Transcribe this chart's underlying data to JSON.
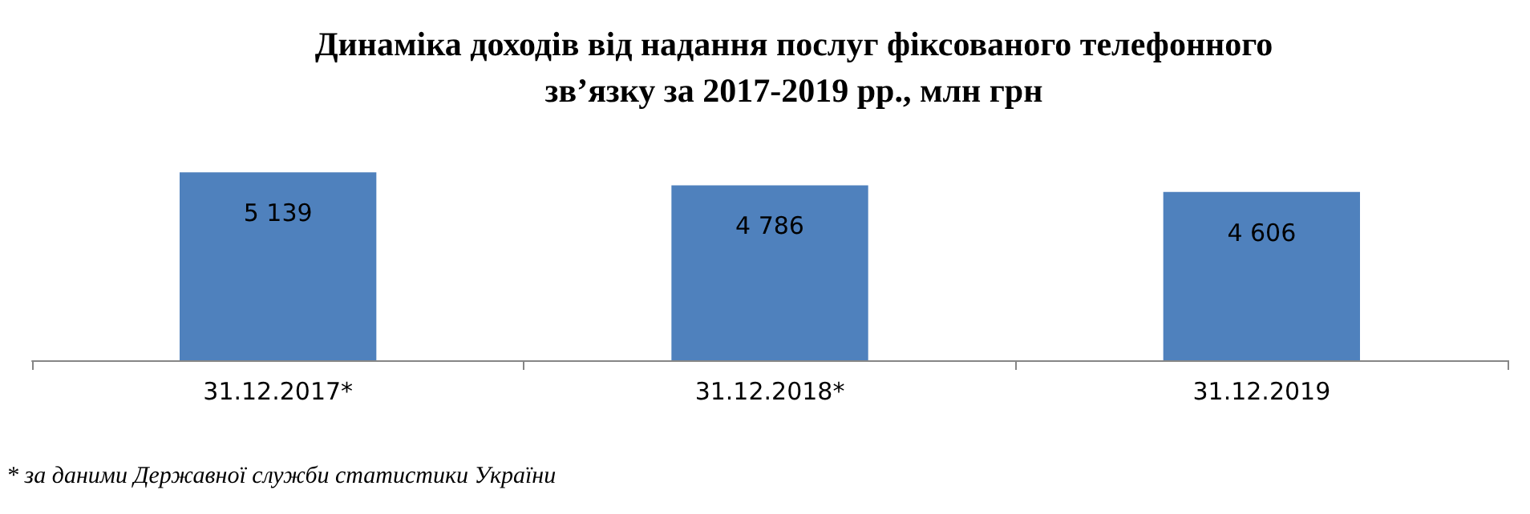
{
  "chart_data": {
    "type": "bar",
    "title": "Динаміка доходів від надання послуг фіксованого телефонного\nзв’язку за 2017-2019 рр., млн грн",
    "categories": [
      "31.12.2017*",
      "31.12.2018*",
      "31.12.2019"
    ],
    "values": [
      5139,
      4786,
      4606
    ],
    "color": "#4f81bd",
    "data_labels": true,
    "annotations": [
      "* за даними Державної служби статистики України"
    ]
  }
}
